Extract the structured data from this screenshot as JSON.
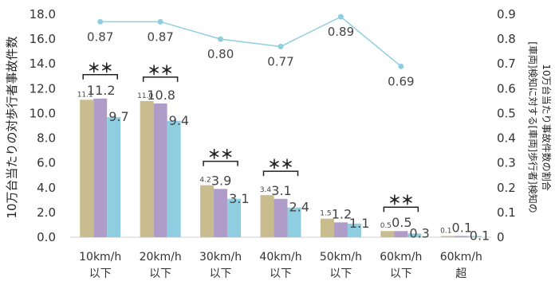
{
  "chart_data": {
    "type": "bar",
    "categories": [
      [
        "10km/h",
        "以下"
      ],
      [
        "20km/h",
        "以下"
      ],
      [
        "30km/h",
        "以下"
      ],
      [
        "40km/h",
        "以下"
      ],
      [
        "50km/h",
        "以下"
      ],
      [
        "60km/h",
        "以下"
      ],
      [
        "60km/h",
        "超"
      ]
    ],
    "ylabel_left": "10万台当たりの対歩行者事故件数",
    "ylabel_right_lines": [
      "[車両]検知に対する[車両]歩行者]検知の",
      "10万台当たり事故件数の割合"
    ],
    "ylim_left": [
      0,
      18
    ],
    "yticks_left": [
      "0.0",
      "2.0",
      "4.0",
      "6.0",
      "8.0",
      "10.0",
      "12.0",
      "14.0",
      "16.0",
      "18.0"
    ],
    "ylim_right": [
      0,
      0.9
    ],
    "yticks_right": [
      "0",
      "0.1",
      "0.2",
      "0.3",
      "0.4",
      "0.5",
      "0.6",
      "0.7",
      "0.8",
      "0.9"
    ],
    "grid": false,
    "bar_series": [
      {
        "color": "#c9bd8f",
        "values": [
          11.1,
          11.0,
          4.2,
          3.4,
          1.5,
          0.5,
          0.1
        ],
        "labels": [
          "11.1",
          "11.0",
          "4.2",
          "3.4",
          "1.5",
          "0.5",
          "0.1"
        ]
      },
      {
        "color": "#b09cc9",
        "values": [
          11.2,
          10.8,
          3.9,
          3.1,
          1.2,
          0.5,
          0.1
        ],
        "labels": [
          "11.2",
          "10.8",
          "3.9",
          "3.1",
          "1.2",
          "0.5",
          "0.1"
        ]
      },
      {
        "color": "#8fcde0",
        "values": [
          9.7,
          9.4,
          3.1,
          2.4,
          1.1,
          0.3,
          0.1
        ],
        "labels": [
          "9.7",
          "9.4",
          "3.1",
          "2.4",
          "1.1",
          "0.3",
          "0.1"
        ]
      }
    ],
    "line_series": {
      "color": "#8fcde0",
      "values": [
        0.87,
        0.87,
        0.8,
        0.77,
        0.89,
        0.69
      ],
      "labels": [
        "0.87",
        "0.87",
        "0.80",
        "0.77",
        "0.89",
        "0.69"
      ]
    },
    "significance": [
      {
        "category": 0,
        "label": "＊＊"
      },
      {
        "category": 1,
        "label": "＊＊"
      },
      {
        "category": 2,
        "label": "＊＊"
      },
      {
        "category": 3,
        "label": "＊＊"
      },
      {
        "category": 5,
        "label": "＊＊"
      }
    ]
  }
}
